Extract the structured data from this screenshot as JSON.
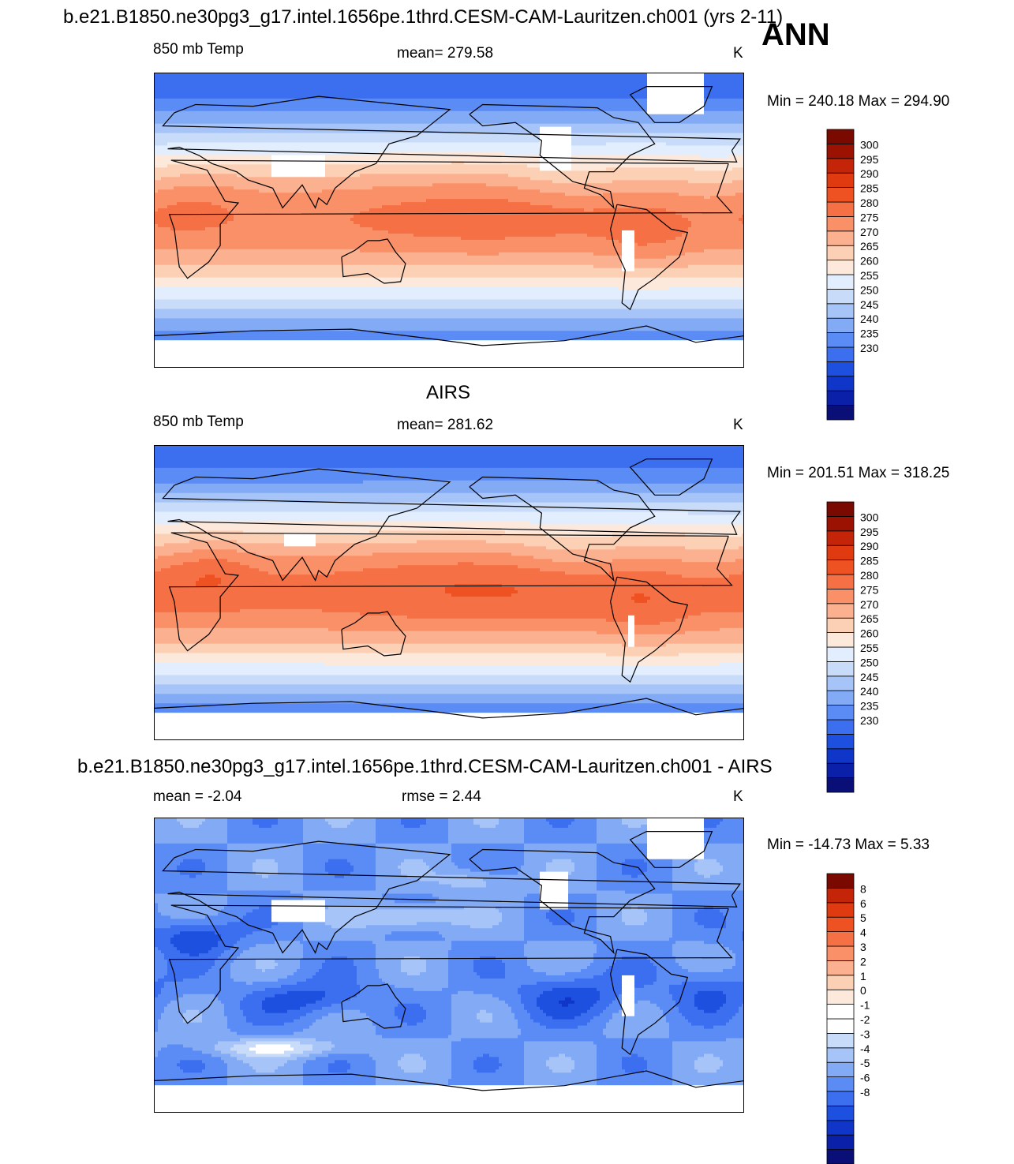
{
  "title": "b.e21.B1850.ne30pg3_g17.intel.1656pe.1thrd.CESM-CAM-Lauritzen.ch001 (yrs 2-11)",
  "season": "ANN",
  "airs_title": "AIRS",
  "diff_title": "b.e21.B1850.ne30pg3_g17.intel.1656pe.1thrd.CESM-CAM-Lauritzen.ch001 - AIRS",
  "colors": {
    "temp_scale": [
      "#0a0f78",
      "#0a20a8",
      "#0f36c8",
      "#1e50e0",
      "#3c6ef0",
      "#5b8cf5",
      "#82aaf5",
      "#a6c4f8",
      "#c8dcfa",
      "#e2eefd",
      "#fde8dc",
      "#fcd0b4",
      "#fbb090",
      "#f99068",
      "#f57044",
      "#ef5222",
      "#e03a10",
      "#c42408",
      "#9c1202",
      "#7a0a00"
    ],
    "diff_scale": [
      "#0a0f78",
      "#0a20a8",
      "#0f36c8",
      "#1e50e0",
      "#3c6ef0",
      "#5b8cf5",
      "#82aaf5",
      "#a6c4f8",
      "#c8dcfa",
      "#ffffff",
      "#ffffff",
      "#fde8dc",
      "#fcd0b4",
      "#fbb090",
      "#f99068",
      "#f57044",
      "#ef5222",
      "#e03a10",
      "#c42408",
      "#7a0a00"
    ],
    "missing": "#ffffff",
    "coast": "#000000"
  },
  "panels": [
    {
      "left_label": "850 mb Temp",
      "center_label": "mean= 279.58",
      "units": "K",
      "minmax": "Min = 240.18 Max = 294.90",
      "colorbar_labels": [
        "300",
        "295",
        "290",
        "285",
        "280",
        "275",
        "270",
        "265",
        "260",
        "255",
        "250",
        "245",
        "240",
        "235",
        "230"
      ]
    },
    {
      "left_label": "850 mb Temp",
      "center_label": "mean= 281.62",
      "units": "K",
      "minmax": "Min = 201.51 Max = 318.25",
      "colorbar_labels": [
        "300",
        "295",
        "290",
        "285",
        "280",
        "275",
        "270",
        "265",
        "260",
        "255",
        "250",
        "245",
        "240",
        "235",
        "230"
      ]
    },
    {
      "left_label": "mean =  -2.04",
      "center_label": "rmse =   2.44",
      "units": "K",
      "minmax": "Min = -14.73 Max =   5.33",
      "colorbar_labels": [
        "8",
        "6",
        "5",
        "4",
        "3",
        "2",
        "1",
        "0",
        "-1",
        "-2",
        "-3",
        "-4",
        "-5",
        "-6",
        "-8"
      ]
    }
  ]
}
